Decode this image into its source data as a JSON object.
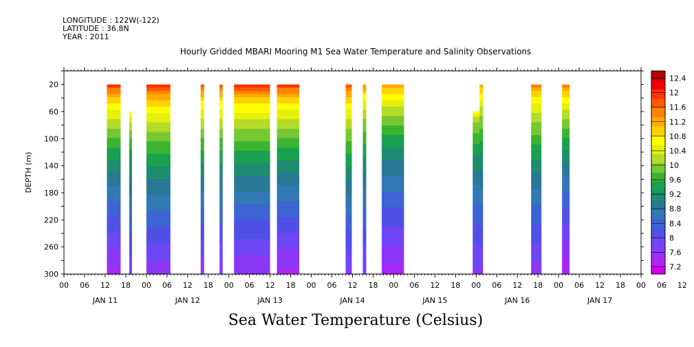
{
  "meta": {
    "longitude": "LONGITUDE : 122W(-122)",
    "latitude": "LATITUDE : 36.8N",
    "year": "YEAR : 2011"
  },
  "chart_data": {
    "type": "heatmap",
    "title": "Hourly Gridded MBARI Mooring M1 Sea Water Temperature and Salinity Observations",
    "xlabel": "Sea Water Temperature (Celsius)",
    "ylabel": "DEPTH (m)",
    "x_day_labels": [
      "JAN 11",
      "JAN 12",
      "JAN 13",
      "JAN 14",
      "JAN 15",
      "JAN 16",
      "JAN 17"
    ],
    "x_hour_ticks": [
      "00",
      "06",
      "12",
      "18",
      "00",
      "06",
      "12",
      "18",
      "00",
      "06",
      "12",
      "18",
      "00",
      "06",
      "12",
      "18",
      "00",
      "06",
      "12",
      "18",
      "00",
      "06",
      "12",
      "18",
      "00",
      "06",
      "12",
      "18",
      "00",
      "06",
      "12",
      "18",
      "00"
    ],
    "x_range_hours": [
      0,
      168
    ],
    "y_ticks": [
      20,
      60,
      100,
      140,
      180,
      220,
      260,
      300
    ],
    "ylim": [
      0,
      300
    ],
    "y_reversed": true,
    "colorbar": {
      "levels": [
        7.2,
        7.6,
        8,
        8.4,
        8.8,
        9.2,
        9.6,
        10,
        10.4,
        10.8,
        11.2,
        11.6,
        12,
        12.4
      ],
      "colors": [
        "#d200f0",
        "#aa28f5",
        "#8c37f5",
        "#6e46f5",
        "#5050e6",
        "#3c64d2",
        "#3278b4",
        "#287896",
        "#1e8c6e",
        "#19a050",
        "#3cb432",
        "#78c832",
        "#b4dc28",
        "#e6f00a",
        "#ffff00",
        "#ffd200",
        "#ffaa00",
        "#ff8200",
        "#ff5a00",
        "#ff3200",
        "#f00000",
        "#b40000"
      ]
    },
    "segments": [
      {
        "start_h": 12.5,
        "end_h": 16.5,
        "top_m": 20,
        "top_temp": 12.2,
        "bottom_temp": 7.4
      },
      {
        "start_h": 19.0,
        "end_h": 19.8,
        "top_m": 60,
        "top_temp": 11.0,
        "bottom_temp": 7.8
      },
      {
        "start_h": 24.0,
        "end_h": 31.0,
        "top_m": 20,
        "top_temp": 12.2,
        "bottom_temp": 7.6
      },
      {
        "start_h": 39.8,
        "end_h": 40.8,
        "top_m": 20,
        "top_temp": 12.0,
        "bottom_temp": 7.6
      },
      {
        "start_h": 45.3,
        "end_h": 46.2,
        "top_m": 20,
        "top_temp": 12.0,
        "bottom_temp": 7.6
      },
      {
        "start_h": 49.5,
        "end_h": 60.0,
        "top_m": 20,
        "top_temp": 12.2,
        "bottom_temp": 7.5
      },
      {
        "start_h": 62.0,
        "end_h": 68.5,
        "top_m": 20,
        "top_temp": 12.2,
        "bottom_temp": 7.4
      },
      {
        "start_h": 82.0,
        "end_h": 83.8,
        "top_m": 20,
        "top_temp": 12.0,
        "bottom_temp": 7.7
      },
      {
        "start_h": 87.0,
        "end_h": 88.0,
        "top_m": 20,
        "top_temp": 11.6,
        "bottom_temp": 7.7
      },
      {
        "start_h": 92.5,
        "end_h": 99.0,
        "top_m": 20,
        "top_temp": 11.6,
        "bottom_temp": 7.4
      },
      {
        "start_h": 119.0,
        "end_h": 121.5,
        "top_m": 60,
        "top_temp": 10.8,
        "bottom_temp": 7.7
      },
      {
        "start_h": 121.0,
        "end_h": 122.0,
        "top_m": 20,
        "top_temp": 11.5,
        "bottom_temp": 7.7
      },
      {
        "start_h": 136.0,
        "end_h": 139.0,
        "top_m": 20,
        "top_temp": 11.8,
        "bottom_temp": 7.6
      },
      {
        "start_h": 145.0,
        "end_h": 147.2,
        "top_m": 20,
        "top_temp": 11.8,
        "bottom_temp": 7.3
      }
    ]
  }
}
